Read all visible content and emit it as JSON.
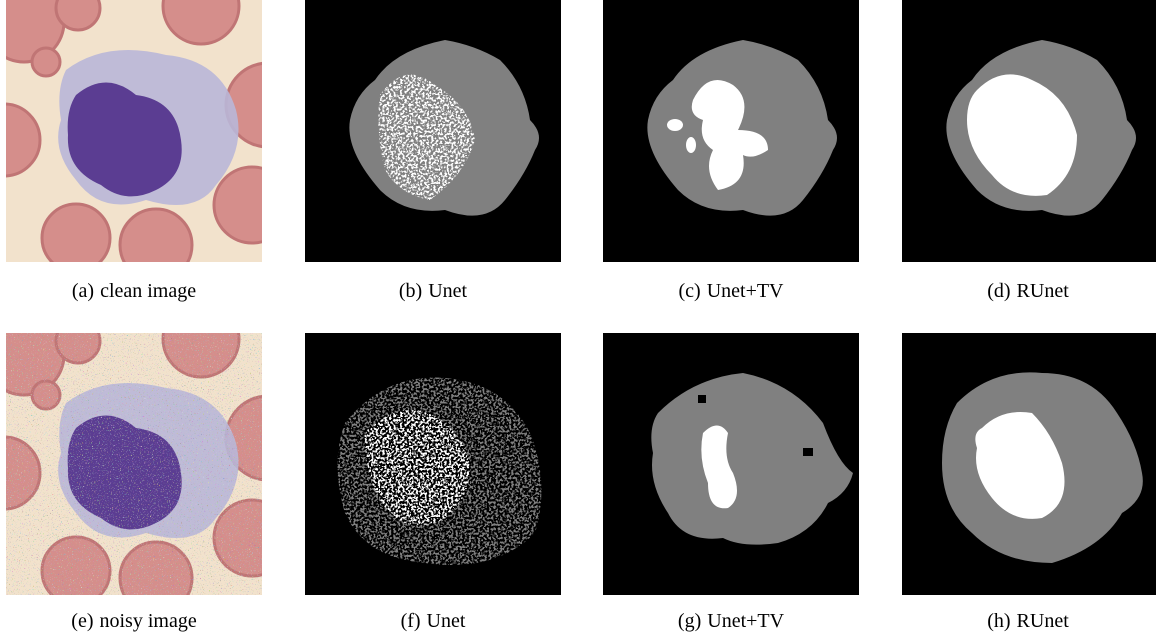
{
  "panels": [
    {
      "label": "(a)",
      "caption": "clean image"
    },
    {
      "label": "(b)",
      "caption": "Unet"
    },
    {
      "label": "(c)",
      "caption": "Unet+TV"
    },
    {
      "label": "(d)",
      "caption": "RUnet"
    },
    {
      "label": "(e)",
      "caption": "noisy image"
    },
    {
      "label": "(f)",
      "caption": "Unet"
    },
    {
      "label": "(g)",
      "caption": "Unet+TV"
    },
    {
      "label": "(h)",
      "caption": "RUnet"
    }
  ]
}
